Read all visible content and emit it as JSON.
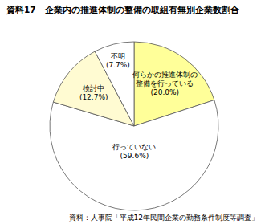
{
  "chart_data": {
    "type": "pie",
    "title": "資料17　企業内の推進体制の整備の取組有無別企業数割合",
    "categories": [
      "何らかの推進体制の整備を行っている",
      "行っていない",
      "検討中",
      "不明"
    ],
    "values": [
      20.0,
      59.6,
      12.7,
      7.7
    ],
    "value_labels": [
      "(20.0%)",
      "(59.6%)",
      "(12.7%)",
      "(7.7%)"
    ],
    "colors": [
      "#ffff99",
      "#ffffff",
      "#fffbd2",
      "#ffffff"
    ],
    "data_labels": true,
    "source": "資料：人事院「平成12年民間企業の勤務条件制度等調査」"
  }
}
